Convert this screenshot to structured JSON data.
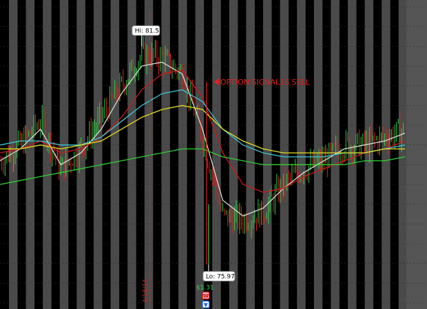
{
  "chart_data": {
    "type": "line",
    "title": "",
    "xlabel": "",
    "ylabel": "",
    "grid": false,
    "legend": "none",
    "colors": {
      "background": "#000000",
      "band": "#4a4a4a",
      "gridline": "#2e2e2e",
      "candle_up": "#2ecc40",
      "candle_down": "#e02020",
      "signal": "#e02020",
      "date_label": "#cc2020",
      "profit": "#2ecc40",
      "badge_text": "#000000",
      "badge_bg": "#ffffff"
    },
    "markers": {
      "high_label": "Hi: 81.5",
      "low_label": "Lo: 75.97",
      "signal_label": "OPTION SIGNAL1S SELL",
      "date_label": "4/18/14",
      "profit_label": "$1.31"
    },
    "x": [
      0,
      5,
      10,
      15,
      20,
      25,
      30,
      35,
      40,
      45,
      50,
      55,
      60,
      65,
      70,
      75,
      80,
      85,
      90,
      95,
      100
    ],
    "price": [
      78.6,
      79.0,
      79.6,
      78.4,
      78.9,
      79.7,
      80.5,
      81.3,
      81.2,
      80.8,
      79.2,
      77.2,
      77.1,
      77.3,
      78.0,
      78.4,
      78.6,
      79.0,
      79.0,
      79.2,
      79.4
    ],
    "series": [
      {
        "color": "#d8d8d8",
        "values": [
          78.6,
          78.9,
          79.4,
          78.5,
          78.8,
          79.4,
          80.3,
          81.0,
          81.1,
          80.8,
          79.4,
          77.6,
          77.2,
          77.4,
          77.9,
          78.3,
          78.6,
          78.9,
          79.0,
          79.1,
          79.3
        ]
      },
      {
        "color": "#d01818",
        "values": [
          78.8,
          78.9,
          79.1,
          78.8,
          78.9,
          79.2,
          79.7,
          80.4,
          80.8,
          80.9,
          80.2,
          78.8,
          78.0,
          77.8,
          77.9,
          78.2,
          78.4,
          78.6,
          78.8,
          78.9,
          79.1
        ]
      },
      {
        "color": "#3cc8d8",
        "values": [
          79.0,
          79.1,
          79.1,
          79.0,
          79.0,
          79.2,
          79.6,
          80.0,
          80.3,
          80.4,
          80.1,
          79.4,
          79.0,
          78.8,
          78.7,
          78.7,
          78.7,
          78.8,
          78.8,
          78.9,
          79.0
        ]
      },
      {
        "color": "#e8e020",
        "values": [
          78.9,
          78.9,
          79.0,
          78.9,
          79.0,
          79.1,
          79.4,
          79.7,
          79.9,
          80.0,
          79.9,
          79.4,
          79.1,
          78.9,
          78.8,
          78.8,
          78.8,
          78.8,
          78.8,
          78.9,
          78.9
        ]
      },
      {
        "color": "#30d030",
        "values": [
          78.0,
          78.1,
          78.2,
          78.3,
          78.4,
          78.5,
          78.6,
          78.7,
          78.8,
          78.9,
          78.9,
          78.7,
          78.6,
          78.5,
          78.5,
          78.5,
          78.5,
          78.5,
          78.6,
          78.6,
          78.7
        ]
      }
    ],
    "high": {
      "x": 35,
      "y": 81.5
    },
    "low": {
      "x": 51.5,
      "y": 75.97
    },
    "signal_x": 51,
    "date_x": 37,
    "ylim": [
      75.0,
      82.5
    ],
    "xlim": [
      0,
      100
    ]
  }
}
